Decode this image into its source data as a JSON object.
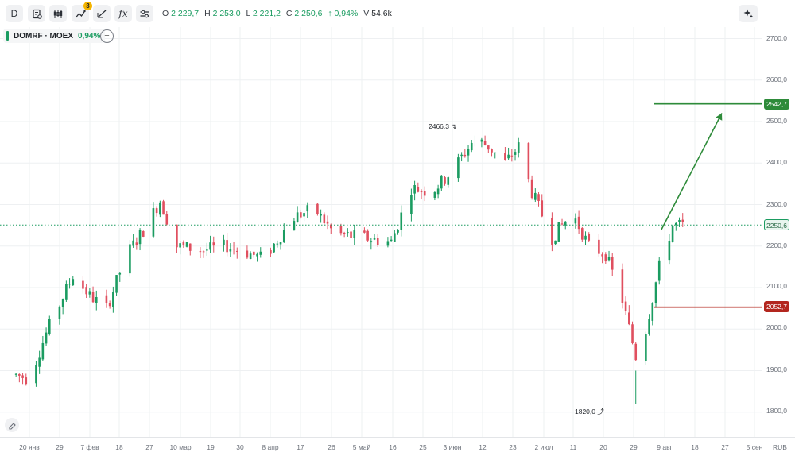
{
  "toolbar": {
    "interval_label": "D",
    "indicator_badge": "3",
    "fx_label": "fx"
  },
  "ohlc": {
    "o_label": "O",
    "o_value": "2 229,7",
    "h_label": "H",
    "h_value": "2 253,0",
    "l_label": "L",
    "l_value": "2 221,2",
    "c_label": "C",
    "c_value": "2 250,6",
    "change": "↑ 0,94%",
    "v_label": "V",
    "v_value": "54,6k"
  },
  "legend": {
    "ticker": "DOMRF · MOEX",
    "change": "0,94%"
  },
  "price_axis": {
    "labels": [
      "2700,0",
      "2600,0",
      "2500,0",
      "2400,0",
      "2300,0",
      "2200,0",
      "2100,0",
      "2000,0",
      "1900,0",
      "1800,0"
    ],
    "currency": "RUB",
    "current_price": "2250,6",
    "target_level": "2542,7",
    "stop_level": "2052,7"
  },
  "time_axis": {
    "labels": [
      "20 янв",
      "29",
      "7 фев",
      "18",
      "27",
      "10 мар",
      "19",
      "30",
      "8 апр",
      "17",
      "26",
      "5 май",
      "16",
      "25",
      "3 июн",
      "12",
      "23",
      "2 июл",
      "11",
      "20",
      "29",
      "9 авг",
      "18",
      "27",
      "5 сен"
    ]
  },
  "annotations": {
    "high": "2466,3 ↴",
    "low": "1820,0 ⤴"
  },
  "colors": {
    "up": "#1b9c61",
    "down": "#e04f5f",
    "target": "#2e8b3a",
    "stop": "#b3261e",
    "grid": "#eef0f2"
  },
  "chart_data": {
    "type": "candlestick",
    "symbol": "DOMRF",
    "exchange": "MOEX",
    "interval": "D",
    "last": {
      "open": 2229.7,
      "high": 2253.0,
      "low": 2221.2,
      "close": 2250.6,
      "volume": "54,6k",
      "change_pct": 0.94
    },
    "ylim": [
      1760,
      2740
    ],
    "levels": {
      "current": 2250.6,
      "target": 2542.7,
      "stop": 2052.7
    },
    "labeled_extremes": {
      "high": 2466.3,
      "low": 1820.0
    },
    "path_keypoints": [
      {
        "date": "2024-01-16",
        "price": 1890
      },
      {
        "date": "2024-01-20",
        "price": 1880
      },
      {
        "date": "2024-01-25",
        "price": 1990
      },
      {
        "date": "2024-02-02",
        "price": 2130
      },
      {
        "date": "2024-02-07",
        "price": 2080
      },
      {
        "date": "2024-02-12",
        "price": 2050
      },
      {
        "date": "2024-02-18",
        "price": 2180
      },
      {
        "date": "2024-02-24",
        "price": 2250
      },
      {
        "date": "2024-02-28",
        "price": 2310
      },
      {
        "date": "2024-03-04",
        "price": 2200
      },
      {
        "date": "2024-03-12",
        "price": 2190
      },
      {
        "date": "2024-03-19",
        "price": 2200
      },
      {
        "date": "2024-03-30",
        "price": 2170
      },
      {
        "date": "2024-04-08",
        "price": 2270
      },
      {
        "date": "2024-04-14",
        "price": 2290
      },
      {
        "date": "2024-04-20",
        "price": 2230
      },
      {
        "date": "2024-04-29",
        "price": 2220
      },
      {
        "date": "2024-05-07",
        "price": 2210
      },
      {
        "date": "2024-05-13",
        "price": 2340
      },
      {
        "date": "2024-05-19",
        "price": 2330
      },
      {
        "date": "2024-05-25",
        "price": 2380
      },
      {
        "date": "2024-06-01",
        "price": 2460
      },
      {
        "date": "2024-06-05",
        "price": 2440
      },
      {
        "date": "2024-06-10",
        "price": 2400
      },
      {
        "date": "2024-06-14",
        "price": 2440
      },
      {
        "date": "2024-06-18",
        "price": 2330
      },
      {
        "date": "2024-06-24",
        "price": 2220
      },
      {
        "date": "2024-06-30",
        "price": 2280
      },
      {
        "date": "2024-07-05",
        "price": 2200
      },
      {
        "date": "2024-07-10",
        "price": 2180
      },
      {
        "date": "2024-07-15",
        "price": 2070
      },
      {
        "date": "2024-07-20",
        "price": 1900
      },
      {
        "date": "2024-07-22",
        "price": 2000
      },
      {
        "date": "2024-07-26",
        "price": 2150
      },
      {
        "date": "2024-07-30",
        "price": 2250
      },
      {
        "date": "2024-08-03",
        "price": 2250
      }
    ]
  }
}
